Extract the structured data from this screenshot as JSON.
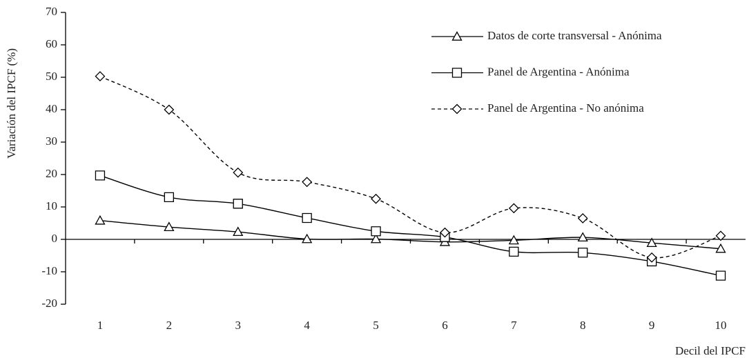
{
  "chart_data": {
    "type": "line",
    "y_label": "Variación del IPCF (%)",
    "x_label": "Decil del IPCF",
    "categories": [
      1,
      2,
      3,
      4,
      5,
      6,
      7,
      8,
      9,
      10
    ],
    "series": [
      {
        "name": "Datos de corte transversal - Anónima",
        "color": "#000000",
        "marker": "triangle",
        "dash": false,
        "values": [
          5.8,
          3.8,
          2.3,
          0.1,
          0.1,
          -0.8,
          -0.3,
          0.6,
          -1.1,
          -2.9
        ]
      },
      {
        "name": "Panel de Argentina - Anónima",
        "color": "#000000",
        "marker": "square",
        "dash": false,
        "values": [
          19.7,
          13.0,
          11.0,
          6.6,
          2.5,
          0.7,
          -3.8,
          -4.1,
          -6.8,
          -11.2
        ]
      },
      {
        "name": "Panel de Argentina - No anónima",
        "color": "#000000",
        "marker": "diamond",
        "dash": true,
        "values": [
          50.3,
          40.0,
          20.6,
          17.7,
          12.5,
          2.1,
          9.6,
          6.5,
          -5.6,
          1.1
        ]
      }
    ],
    "ylim": [
      -20,
      70
    ],
    "yticks": [
      -20,
      -10,
      0,
      10,
      20,
      30,
      40,
      50,
      60,
      70
    ],
    "legend": "top-right",
    "grid": false
  }
}
